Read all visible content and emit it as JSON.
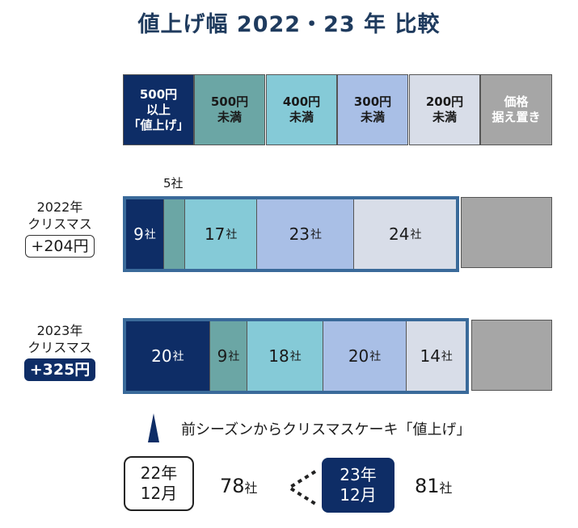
{
  "title": "値上げ幅 2022・23 年 比較",
  "legend": [
    {
      "lines": [
        "500円",
        "以上",
        "「値上げ」"
      ],
      "color": "#0e2d66",
      "text_color": "#ffffff"
    },
    {
      "lines": [
        "500円",
        "未満"
      ],
      "color": "#6ba6a5",
      "text_color": "#1a1a1a"
    },
    {
      "lines": [
        "400円",
        "未満"
      ],
      "color": "#85cad7",
      "text_color": "#1a1a1a"
    },
    {
      "lines": [
        "300円",
        "未満"
      ],
      "color": "#a9bfe6",
      "text_color": "#1a1a1a"
    },
    {
      "lines": [
        "200円",
        "未満"
      ],
      "color": "#d8dde8",
      "text_color": "#1a1a1a"
    },
    {
      "lines": [
        "価格",
        "据え置き"
      ],
      "color": "#a6a6a6",
      "text_color": "#ffffff"
    }
  ],
  "rows": [
    {
      "year": "2022年",
      "label": "クリスマス",
      "change": "+204円",
      "change_style": "outline"
    },
    {
      "year": "2023年",
      "label": "クリスマス",
      "change": "+325円",
      "change_style": "filled"
    }
  ],
  "callouts": {
    "above_2022_seg2": "5社"
  },
  "chart_data": {
    "type": "bar",
    "stacked": true,
    "orientation": "horizontal",
    "title": "値上げ幅 2022・23 年 比較",
    "unit": "社",
    "categories": [
      "2022年 クリスマス",
      "2023年 クリスマス"
    ],
    "series": [
      {
        "name": "500円以上「値上げ」",
        "values": [
          9,
          20
        ],
        "color": "#0e2d66"
      },
      {
        "name": "500円未満",
        "values": [
          5,
          9
        ],
        "color": "#6ba6a5"
      },
      {
        "name": "400円未満",
        "values": [
          17,
          18
        ],
        "color": "#85cad7"
      },
      {
        "name": "300円未満",
        "values": [
          23,
          20
        ],
        "color": "#a9bfe6"
      },
      {
        "name": "200円未満",
        "values": [
          24,
          14
        ],
        "color": "#d8dde8"
      }
    ],
    "value_labels": [
      [
        "9社",
        "",
        "17社",
        "23社",
        "24社"
      ],
      [
        "20社",
        "9社",
        "18社",
        "20社",
        "14社"
      ]
    ]
  },
  "note": "前シーズンからクリスマスケーキ「値上げ」",
  "comparison": {
    "prev": {
      "line1": "22年",
      "line2": "12月",
      "count": "78",
      "unit": "社"
    },
    "curr": {
      "line1": "23年",
      "line2": "12月",
      "count": "81",
      "unit": "社"
    }
  }
}
